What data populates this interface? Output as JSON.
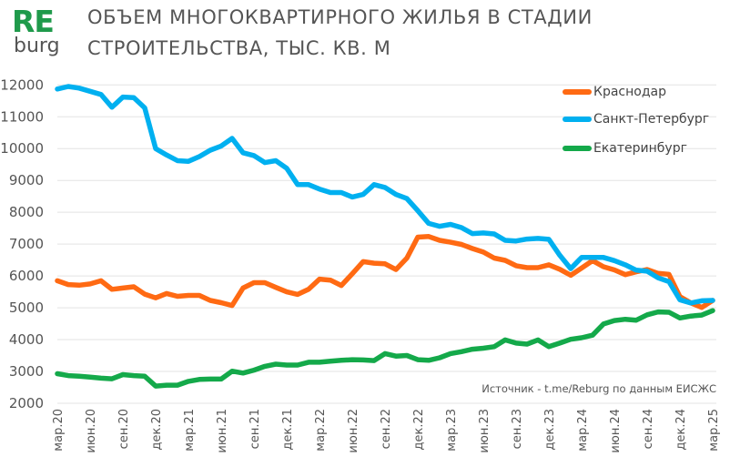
{
  "logo": {
    "re": "RE",
    "burg": "burg"
  },
  "title": {
    "line1": "ОБЪЕМ МНОГОКВАРТИРНОГО ЖИЛЬЯ В СТАДИИ",
    "line2": "СТРОИТЕЛЬСТВА, ТЫС. КВ. М"
  },
  "source": "Источник - t.me/Reburg по данным ЕИСЖС",
  "chart_data": {
    "type": "line",
    "title": "ОБЪЕМ МНОГОКВАРТИРНОГО ЖИЛЬЯ В СТАДИИ СТРОИТЕЛЬСТВА, ТЫС. КВ. М",
    "ylim": [
      2000,
      12000
    ],
    "yticks": [
      2000,
      3000,
      4000,
      5000,
      6000,
      7000,
      8000,
      9000,
      10000,
      11000,
      12000
    ],
    "grid": true,
    "legend": "top-right",
    "x": [
      "мар.20",
      "апр.20",
      "май.20",
      "июн.20",
      "июл.20",
      "авг.20",
      "сен.20",
      "окт.20",
      "ноя.20",
      "дек.20",
      "янв.21",
      "фев.21",
      "мар.21",
      "апр.21",
      "май.21",
      "июн.21",
      "июл.21",
      "авг.21",
      "сен.21",
      "окт.21",
      "ноя.21",
      "дек.21",
      "янв.22",
      "фев.22",
      "мар.22",
      "апр.22",
      "май.22",
      "июн.22",
      "июл.22",
      "авг.22",
      "сен.22",
      "окт.22",
      "ноя.22",
      "дек.22",
      "янв.23",
      "фев.23",
      "мар.23",
      "апр.23",
      "май.23",
      "июн.23",
      "июл.23",
      "авг.23",
      "сен.23",
      "окт.23",
      "ноя.23",
      "дек.23",
      "янв.24",
      "фев.24",
      "мар.24",
      "апр.24",
      "май.24",
      "июн.24",
      "июл.24",
      "авг.24",
      "сен.24",
      "окт.24",
      "ноя.24",
      "дек.24",
      "янв.25",
      "фев.25",
      "мар.25"
    ],
    "xtick_labels": [
      "мар.20",
      "июн.20",
      "сен.20",
      "дек.20",
      "мар.21",
      "июн.21",
      "сен.21",
      "дек.21",
      "мар.22",
      "июн.22",
      "сен.22",
      "дек.22",
      "мар.23",
      "июн.23",
      "сен.23",
      "дек.23",
      "мар.24",
      "июн.24",
      "сен.24",
      "дек.24",
      "мар.25"
    ],
    "series": [
      {
        "name": "Краснодар",
        "color": "#ff6a13",
        "values": [
          5850,
          5730,
          5710,
          5750,
          5850,
          5580,
          5620,
          5660,
          5430,
          5310,
          5450,
          5360,
          5390,
          5390,
          5230,
          5160,
          5070,
          5620,
          5790,
          5790,
          5640,
          5500,
          5420,
          5580,
          5900,
          5870,
          5700,
          6070,
          6450,
          6400,
          6380,
          6200,
          6560,
          7220,
          7240,
          7120,
          7060,
          6990,
          6860,
          6750,
          6560,
          6490,
          6320,
          6260,
          6260,
          6350,
          6210,
          6020,
          6250,
          6480,
          6290,
          6190,
          6040,
          6130,
          6200,
          6080,
          6050,
          5350,
          5150,
          5010,
          5230
        ]
      },
      {
        "name": "Санкт-Петербург",
        "color": "#00b0f0",
        "values": [
          11870,
          11950,
          11900,
          11800,
          11700,
          11300,
          11620,
          11600,
          11280,
          10000,
          9800,
          9620,
          9600,
          9750,
          9950,
          10080,
          10320,
          9870,
          9780,
          9560,
          9620,
          9380,
          8870,
          8870,
          8730,
          8620,
          8620,
          8480,
          8560,
          8870,
          8780,
          8560,
          8430,
          8050,
          7650,
          7560,
          7620,
          7520,
          7330,
          7350,
          7320,
          7120,
          7100,
          7160,
          7180,
          7150,
          6650,
          6230,
          6580,
          6580,
          6580,
          6480,
          6350,
          6180,
          6150,
          5940,
          5820,
          5250,
          5150,
          5220,
          5230
        ]
      },
      {
        "name": "Екатеринбург",
        "color": "#14a94a",
        "values": [
          2930,
          2870,
          2850,
          2820,
          2790,
          2770,
          2900,
          2870,
          2850,
          2540,
          2570,
          2570,
          2690,
          2750,
          2760,
          2760,
          3010,
          2950,
          3040,
          3160,
          3230,
          3200,
          3200,
          3290,
          3290,
          3320,
          3350,
          3370,
          3360,
          3340,
          3560,
          3480,
          3500,
          3370,
          3350,
          3430,
          3560,
          3620,
          3700,
          3730,
          3780,
          3990,
          3890,
          3860,
          3990,
          3780,
          3890,
          4010,
          4060,
          4140,
          4490,
          4600,
          4640,
          4610,
          4780,
          4870,
          4860,
          4680,
          4740,
          4770,
          4910
        ]
      }
    ]
  }
}
